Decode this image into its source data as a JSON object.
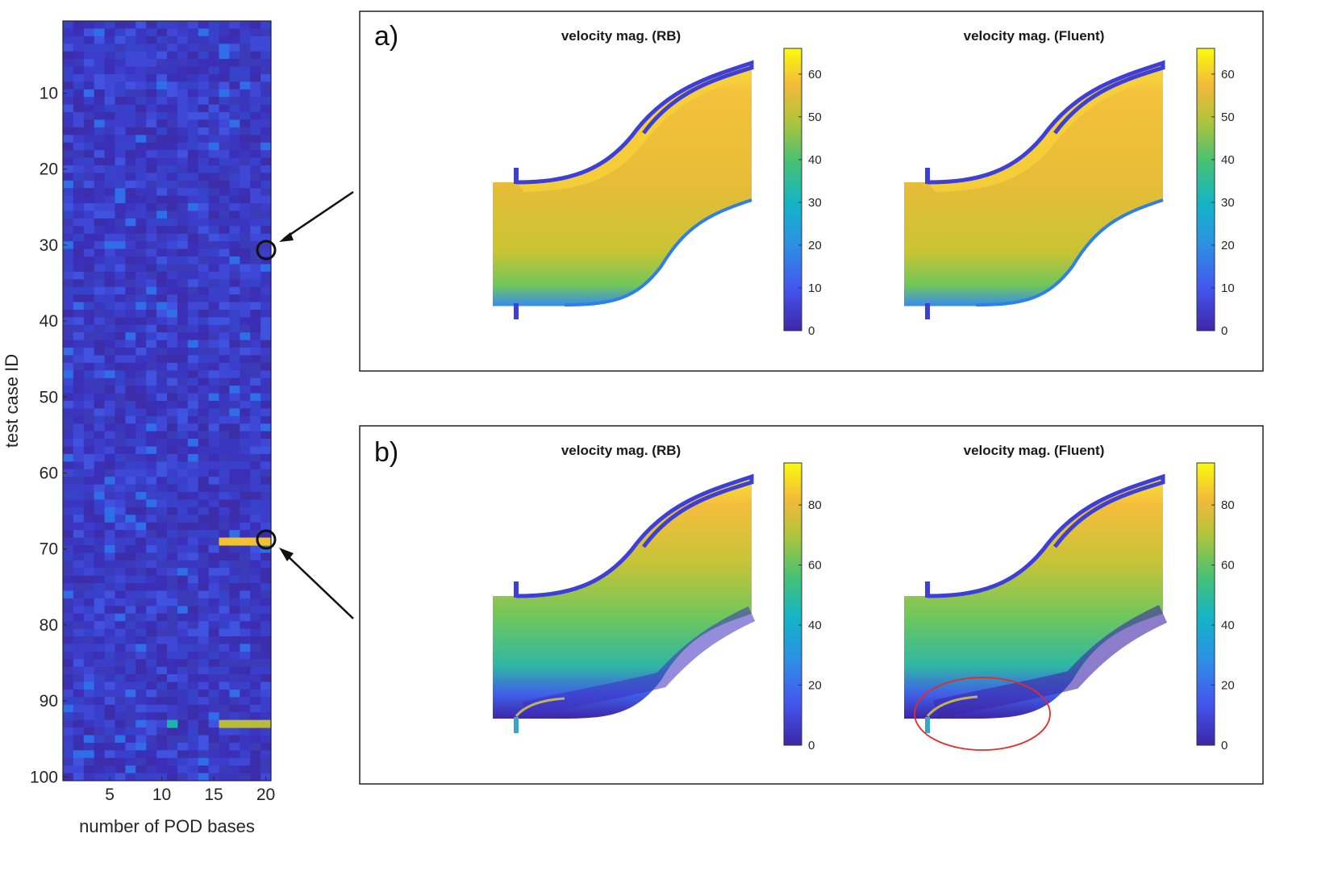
{
  "chart_data": [
    {
      "type": "heatmap",
      "xlabel": "number of POD bases",
      "ylabel": "test case ID",
      "xlim": [
        1,
        20
      ],
      "ylim": [
        1,
        100
      ],
      "x_ticks": [
        "5",
        "10",
        "15",
        "20"
      ],
      "y_ticks": [
        "10",
        "20",
        "30",
        "40",
        "50",
        "60",
        "70",
        "80",
        "90",
        "100"
      ],
      "highlighted_rows": [
        {
          "row": 69,
          "from_basis": 16,
          "to_basis": 20,
          "level": "high"
        },
        {
          "row": 93,
          "from_basis": 16,
          "to_basis": 20,
          "level": "medium-high"
        },
        {
          "row": 93,
          "from_basis": 11,
          "to_basis": 11,
          "level": "medium"
        }
      ],
      "marked_cases": [
        {
          "basis": 20,
          "case": 31,
          "panel": "a"
        },
        {
          "basis": 20,
          "case": 69,
          "panel": "b"
        }
      ]
    },
    {
      "type": "heatmap",
      "panel": "a",
      "letter": "a)",
      "plots": [
        {
          "title": "velocity mag. (RB)"
        },
        {
          "title": "velocity mag. (Fluent)"
        }
      ],
      "colorbar": {
        "min": 0,
        "max": 66,
        "ticks": [
          "0",
          "10",
          "20",
          "30",
          "40",
          "50",
          "60"
        ]
      }
    },
    {
      "type": "heatmap",
      "panel": "b",
      "letter": "b)",
      "plots": [
        {
          "title": "velocity mag. (RB)"
        },
        {
          "title": "velocity mag. (Fluent)"
        }
      ],
      "colorbar": {
        "min": 0,
        "max": 94,
        "ticks": [
          "0",
          "20",
          "40",
          "60",
          "80"
        ]
      },
      "annotation": "red-ellipse-recirculation-zone"
    }
  ],
  "colors": {
    "heatmap_base": "#3a33b8",
    "parula_yellow": "#f9fb0e",
    "parula_orange": "#f0b935",
    "parula_green": "#4ac16d",
    "parula_teal": "#14b9b7",
    "parula_blue": "#2d7fe8",
    "parula_indigo": "#3e26a8",
    "annotation_red": "#e32b2b"
  }
}
